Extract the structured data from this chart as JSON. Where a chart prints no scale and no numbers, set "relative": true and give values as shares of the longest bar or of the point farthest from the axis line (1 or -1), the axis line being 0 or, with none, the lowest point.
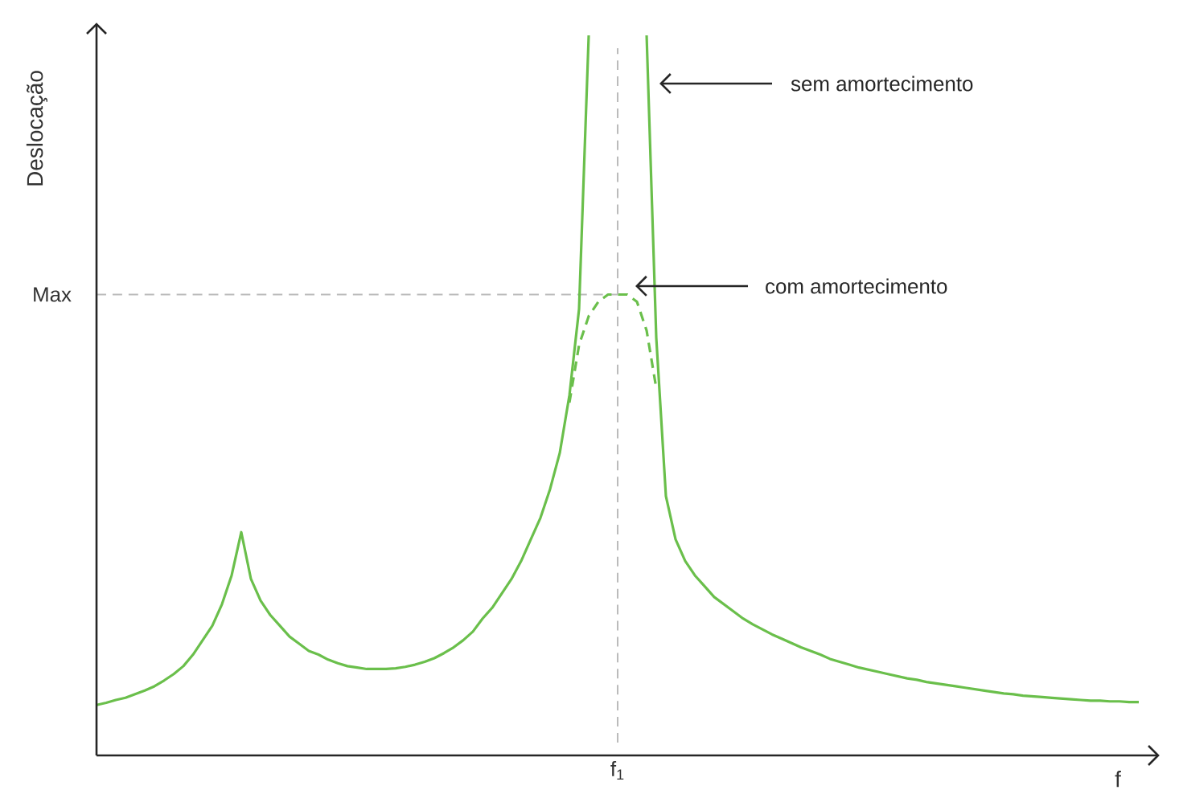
{
  "chart_data": {
    "type": "line",
    "relative": true,
    "ylabel": "Deslocação",
    "xlabel": "f",
    "marker": "none",
    "categories": [
      null,
      null,
      null,
      null,
      null,
      null,
      null,
      null,
      null,
      null,
      null,
      null,
      null,
      null,
      null,
      null,
      null,
      null,
      null,
      null,
      null,
      null,
      null,
      null,
      null,
      null,
      null,
      null,
      null,
      null,
      null,
      null,
      null,
      null,
      null,
      null,
      null,
      null,
      null,
      null,
      null,
      null,
      null,
      null,
      null,
      null,
      null,
      null,
      null,
      null,
      null,
      null,
      null,
      null,
      null,
      null,
      null,
      null,
      null,
      null,
      null,
      null,
      null,
      null,
      null,
      null,
      null,
      null,
      null,
      null,
      null,
      null,
      null,
      null,
      null,
      null,
      null,
      null,
      null,
      null,
      null,
      null,
      null,
      null,
      null,
      null,
      null,
      null,
      null,
      null,
      null,
      null,
      null,
      null,
      null,
      null,
      null,
      null,
      null,
      null,
      null,
      null,
      null,
      null,
      null,
      null,
      null,
      null,
      null
    ],
    "series": [
      {
        "color": "#6abf4b",
        "line_style": "solid",
        "values": [
          0.07,
          0.073,
          0.077,
          0.08,
          0.085,
          0.09,
          0.096,
          0.104,
          0.113,
          0.124,
          0.14,
          0.16,
          0.18,
          0.21,
          0.25,
          0.31,
          0.245,
          0.215,
          0.195,
          0.18,
          0.165,
          0.155,
          0.145,
          0.14,
          0.133,
          0.128,
          0.124,
          0.122,
          0.12,
          0.12,
          0.12,
          0.121,
          0.123,
          0.126,
          0.13,
          0.135,
          0.142,
          0.15,
          0.16,
          0.172,
          0.19,
          0.205,
          0.225,
          0.245,
          0.27,
          0.3,
          0.33,
          0.37,
          0.42,
          0.5,
          0.62,
          1.0,
          null,
          null,
          null,
          null,
          null,
          1.0,
          0.58,
          0.36,
          0.3,
          0.27,
          0.25,
          0.235,
          0.22,
          0.21,
          0.2,
          0.19,
          0.182,
          0.175,
          0.168,
          0.162,
          0.156,
          0.15,
          0.145,
          0.14,
          0.134,
          0.13,
          0.126,
          0.122,
          0.119,
          0.116,
          0.113,
          0.11,
          0.107,
          0.105,
          0.102,
          0.1,
          0.098,
          0.096,
          0.094,
          0.092,
          0.09,
          0.088,
          0.086,
          0.085,
          0.083,
          0.082,
          0.081,
          0.08,
          0.079,
          0.078,
          0.077,
          0.076,
          0.076,
          0.075,
          0.075,
          0.074,
          0.074
        ]
      },
      {
        "color": "#6abf4b",
        "line_style": "dashed",
        "values": [
          null,
          null,
          null,
          null,
          null,
          null,
          null,
          null,
          null,
          null,
          null,
          null,
          null,
          null,
          null,
          null,
          null,
          null,
          null,
          null,
          null,
          null,
          null,
          null,
          null,
          null,
          null,
          null,
          null,
          null,
          null,
          null,
          null,
          null,
          null,
          null,
          null,
          null,
          null,
          null,
          null,
          null,
          null,
          null,
          null,
          null,
          null,
          null,
          null,
          0.49,
          0.57,
          0.61,
          0.63,
          0.64,
          0.64,
          0.64,
          0.63,
          0.59,
          0.51,
          null,
          null,
          null,
          null,
          null,
          null,
          null,
          null,
          null,
          null,
          null,
          null,
          null,
          null,
          null,
          null,
          null,
          null,
          null,
          null,
          null,
          null,
          null,
          null,
          null,
          null,
          null,
          null,
          null,
          null,
          null,
          null,
          null,
          null,
          null,
          null,
          null,
          null,
          null,
          null,
          null,
          null,
          null,
          null,
          null,
          null,
          null,
          null,
          null,
          null
        ]
      }
    ],
    "ref_lines": [
      {
        "axis": "y",
        "value": 0.64,
        "label": "Max",
        "color": "#bbbbbb",
        "line_style": "dashed"
      }
    ],
    "annotations": [
      "sem amortecimento",
      "com amortecimento",
      "f$_{1}$"
    ]
  }
}
